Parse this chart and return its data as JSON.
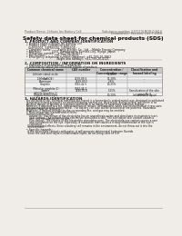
{
  "bg_color": "#f0ede8",
  "header_left": "Product Name: Lithium Ion Battery Cell",
  "header_right_line1": "Substance number: 54F219LMQB-00610",
  "header_right_line2": "Established / Revision: Dec.7.2010",
  "title": "Safety data sheet for chemical products (SDS)",
  "section1_title": "1. PRODUCT AND COMPANY IDENTIFICATION",
  "section1_lines": [
    "  • Product name: Lithium Ion Battery Cell",
    "  • Product code: Cylindrical-type cell",
    "    (54F66001, 54F66500, 54F66504)",
    "  • Company name:       Sanyo Electric Co., Ltd.,  Mobile Energy Company",
    "  • Address:            2001  Kamikosaka, Sumoto-City, Hyogo, Japan",
    "  • Telephone number:   +81-799-26-4111",
    "  • Fax number:         +81-799-26-4121",
    "  • Emergency telephone number (daytime): +81-799-26-3862",
    "                                   (Night and holiday): +81-799-26-4121"
  ],
  "section2_title": "2. COMPOSITION / INFORMATION ON INGREDIENTS",
  "section2_sub": "  • Substance or preparation: Preparation",
  "section2_sub2": "  • Information about the chemical nature of product:",
  "table_headers": [
    "Common chemical name",
    "CAS number",
    "Concentration /\nConcentration range",
    "Classification and\nhazard labeling"
  ],
  "table_rows": [
    [
      "Lithium cobalt oxide\n(LiMnCoRiO4)",
      "-",
      "30-60%",
      ""
    ],
    [
      "Iron",
      "7439-89-6",
      "15-30%",
      "-"
    ],
    [
      "Aluminum",
      "7429-90-5",
      "2-6%",
      "-"
    ],
    [
      "Graphite\n(Metal in graphite-1)\n(All-life graphite-1)",
      "7782-42-5\n7782-44-2",
      "10-25%",
      ""
    ],
    [
      "Copper",
      "7440-50-8",
      "5-15%",
      "Sensitization of the skin\ngroup No.2"
    ],
    [
      "Organic electrolyte",
      "-",
      "10-20%",
      "Inflammable liquid"
    ]
  ],
  "section3_title": "3. HAZARDS IDENTIFICATION",
  "section3_para1": "  For the battery cell, chemical materials are stored in a hermetically sealed metal case, designed to withstand temperatures and pressures encountered during normal use. As a result, during normal use, there is no physical danger of ignition or explosion and there is no danger of hazardous materials leakage.",
  "section3_para2": "  However, if exposed to a fire, added mechanical shocks, decomposed, when electro-mechanical stress uses, the gas maybe vented (or operated). The battery cell case will be breached at fire patterns. Hazardous materials may be released.",
  "section3_para3": "  Moreover, if heated strongly by the surrounding fire, acid gas may be emitted.",
  "effects_title": "  • Most important hazard and effects:",
  "effects_lines": [
    "  Human health effects:",
    "      Inhalation: The release of the electrolyte has an anaesthesia action and stimulates in respiratory tract.",
    "      Skin contact: The release of the electrolyte stimulates a skin. The electrolyte skin contact causes a",
    "      sore and stimulation on the skin.",
    "      Eye contact: The release of the electrolyte stimulates eyes. The electrolyte eye contact causes a sore",
    "      and stimulation on the eye. Especially, a substance that causes a strong inflammation of the eye is",
    "      contained.",
    "    Environmental effects: Since a battery cell remains in the environment, do not throw out it into the",
    "    environment."
  ],
  "specific_title": "  • Specific hazards:",
  "specific_lines": [
    "    If the electrolyte contacts with water, it will generate detrimental hydrogen fluoride.",
    "    Since the seal electrolyte is inflammable liquid, do not bring close to fire."
  ]
}
